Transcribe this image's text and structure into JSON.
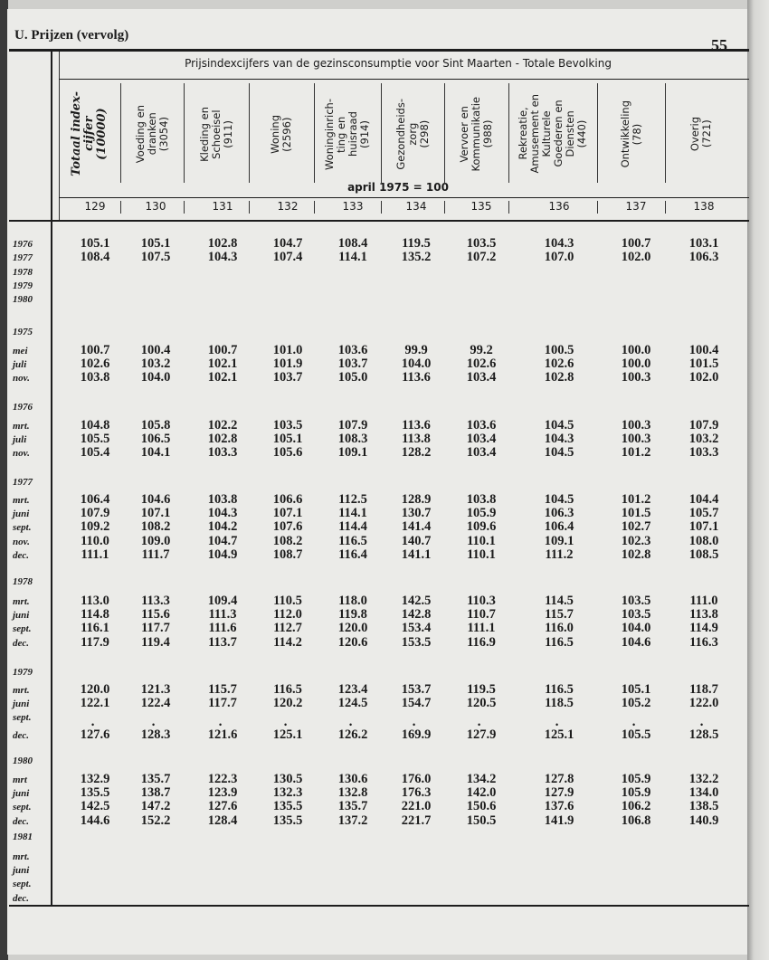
{
  "page": {
    "section_title": "U. Prijzen (vervolg)",
    "page_number": "55"
  },
  "table": {
    "title": "Prijsindexcijfers van de gezinsconsumptie voor Sint Maarten - Totale Bevolking",
    "base": "april 1975 = 100",
    "columns": [
      {
        "header": "Totaal index-\ncijfer\n(10000)",
        "number": "129"
      },
      {
        "header": "Voeding en\ndranken\n(3054)",
        "number": "130"
      },
      {
        "header": "Kleding en\nSchoeisel\n(911)",
        "number": "131"
      },
      {
        "header": "Woning\n(2596)",
        "number": "132"
      },
      {
        "header": "Woninginrich-\nting en\nhuisraad\n(914)",
        "number": "133"
      },
      {
        "header": "Gezondheids-\nzorg\n(298)",
        "number": "134"
      },
      {
        "header": "Vervoer en\nKommunikatie\n(988)",
        "number": "135"
      },
      {
        "header": "Rekreatie,\nAmusement en\nKulturele\nGoederen en\nDiensten\n(440)",
        "number": "136"
      },
      {
        "header": "Ontwikkeling\n(78)",
        "number": "137"
      },
      {
        "header": "Overig\n(721)",
        "number": "138"
      }
    ],
    "blocks": [
      {
        "year": "",
        "rows": [
          {
            "label": "1976",
            "values": [
              "105.1",
              "105.1",
              "102.8",
              "104.7",
              "108.4",
              "119.5",
              "103.5",
              "104.3",
              "100.7",
              "103.1"
            ]
          },
          {
            "label": "1977",
            "values": [
              "108.4",
              "107.5",
              "104.3",
              "107.4",
              "114.1",
              "135.2",
              "107.2",
              "107.0",
              "102.0",
              "106.3"
            ]
          },
          {
            "label": "1978",
            "values": []
          },
          {
            "label": "1979",
            "values": []
          },
          {
            "label": "1980",
            "values": []
          }
        ]
      },
      {
        "year": "1975",
        "rows": [
          {
            "label": "mei",
            "values": [
              "100.7",
              "100.4",
              "100.7",
              "101.0",
              "103.6",
              "99.9",
              "99.2",
              "100.5",
              "100.0",
              "100.4"
            ]
          },
          {
            "label": "juli",
            "values": [
              "102.6",
              "103.2",
              "102.1",
              "101.9",
              "103.7",
              "104.0",
              "102.6",
              "102.6",
              "100.0",
              "101.5"
            ]
          },
          {
            "label": "nov.",
            "values": [
              "103.8",
              "104.0",
              "102.1",
              "103.7",
              "105.0",
              "113.6",
              "103.4",
              "102.8",
              "100.3",
              "102.0"
            ]
          }
        ]
      },
      {
        "year": "1976",
        "rows": [
          {
            "label": "mrt.",
            "values": [
              "104.8",
              "105.8",
              "102.2",
              "103.5",
              "107.9",
              "113.6",
              "103.6",
              "104.5",
              "100.3",
              "107.9"
            ]
          },
          {
            "label": "juli",
            "values": [
              "105.5",
              "106.5",
              "102.8",
              "105.1",
              "108.3",
              "113.8",
              "103.4",
              "104.3",
              "100.3",
              "103.2"
            ]
          },
          {
            "label": "nov.",
            "values": [
              "105.4",
              "104.1",
              "103.3",
              "105.6",
              "109.1",
              "128.2",
              "103.4",
              "104.5",
              "101.2",
              "103.3"
            ]
          }
        ]
      },
      {
        "year": "1977",
        "rows": [
          {
            "label": "mrt.",
            "values": [
              "106.4",
              "104.6",
              "103.8",
              "106.6",
              "112.5",
              "128.9",
              "103.8",
              "104.5",
              "101.2",
              "104.4"
            ]
          },
          {
            "label": "juni",
            "values": [
              "107.9",
              "107.1",
              "104.3",
              "107.1",
              "114.1",
              "130.7",
              "105.9",
              "106.3",
              "101.5",
              "105.7"
            ]
          },
          {
            "label": "sept.",
            "values": [
              "109.2",
              "108.2",
              "104.2",
              "107.6",
              "114.4",
              "141.4",
              "109.6",
              "106.4",
              "102.7",
              "107.1"
            ]
          },
          {
            "label": "nov.",
            "values": [
              "110.0",
              "109.0",
              "104.7",
              "108.2",
              "116.5",
              "140.7",
              "110.1",
              "109.1",
              "102.3",
              "108.0"
            ]
          },
          {
            "label": "dec.",
            "values": [
              "111.1",
              "111.7",
              "104.9",
              "108.7",
              "116.4",
              "141.1",
              "110.1",
              "111.2",
              "102.8",
              "108.5"
            ]
          }
        ]
      },
      {
        "year": "1978",
        "rows": [
          {
            "label": "mrt.",
            "values": [
              "113.0",
              "113.3",
              "109.4",
              "110.5",
              "118.0",
              "142.5",
              "110.3",
              "114.5",
              "103.5",
              "111.0"
            ]
          },
          {
            "label": "juni",
            "values": [
              "114.8",
              "115.6",
              "111.3",
              "112.0",
              "119.8",
              "142.8",
              "110.7",
              "115.7",
              "103.5",
              "113.8"
            ]
          },
          {
            "label": "sept.",
            "values": [
              "116.1",
              "117.7",
              "111.6",
              "112.7",
              "120.0",
              "153.4",
              "111.1",
              "116.0",
              "104.0",
              "114.9"
            ]
          },
          {
            "label": "dec.",
            "values": [
              "117.9",
              "119.4",
              "113.7",
              "114.2",
              "120.6",
              "153.5",
              "116.9",
              "116.5",
              "104.6",
              "116.3"
            ]
          }
        ]
      },
      {
        "year": "1979",
        "rows": [
          {
            "label": "mrt.",
            "values": [
              "120.0",
              "121.3",
              "115.7",
              "116.5",
              "123.4",
              "153.7",
              "119.5",
              "116.5",
              "105.1",
              "118.7"
            ]
          },
          {
            "label": "juni",
            "values": [
              "122.1",
              "122.4",
              "117.7",
              "120.2",
              "124.5",
              "154.7",
              "120.5",
              "118.5",
              "105.2",
              "122.0"
            ]
          },
          {
            "label": "sept.",
            "values": []
          },
          {
            "label": "dec.",
            "marked": true,
            "values": [
              "127.6",
              "128.3",
              "121.6",
              "125.1",
              "126.2",
              "169.9",
              "127.9",
              "125.1",
              "105.5",
              "128.5"
            ]
          }
        ]
      },
      {
        "year": "1980",
        "rows": [
          {
            "label": "mrt",
            "values": [
              "132.9",
              "135.7",
              "122.3",
              "130.5",
              "130.6",
              "176.0",
              "134.2",
              "127.8",
              "105.9",
              "132.2"
            ]
          },
          {
            "label": "juni",
            "values": [
              "135.5",
              "138.7",
              "123.9",
              "132.3",
              "132.8",
              "176.3",
              "142.0",
              "127.9",
              "105.9",
              "134.0"
            ]
          },
          {
            "label": "sept.",
            "values": [
              "142.5",
              "147.2",
              "127.6",
              "135.5",
              "135.7",
              "221.0",
              "150.6",
              "137.6",
              "106.2",
              "138.5"
            ]
          },
          {
            "label": "dec.",
            "values": [
              "144.6",
              "152.2",
              "128.4",
              "135.5",
              "137.2",
              "221.7",
              "150.5",
              "141.9",
              "106.8",
              "140.9"
            ]
          }
        ]
      },
      {
        "year": "1981",
        "rows": [
          {
            "label": "mrt.",
            "values": []
          },
          {
            "label": "juni",
            "values": []
          },
          {
            "label": "sept.",
            "values": []
          },
          {
            "label": "dec.",
            "values": []
          }
        ]
      }
    ]
  }
}
